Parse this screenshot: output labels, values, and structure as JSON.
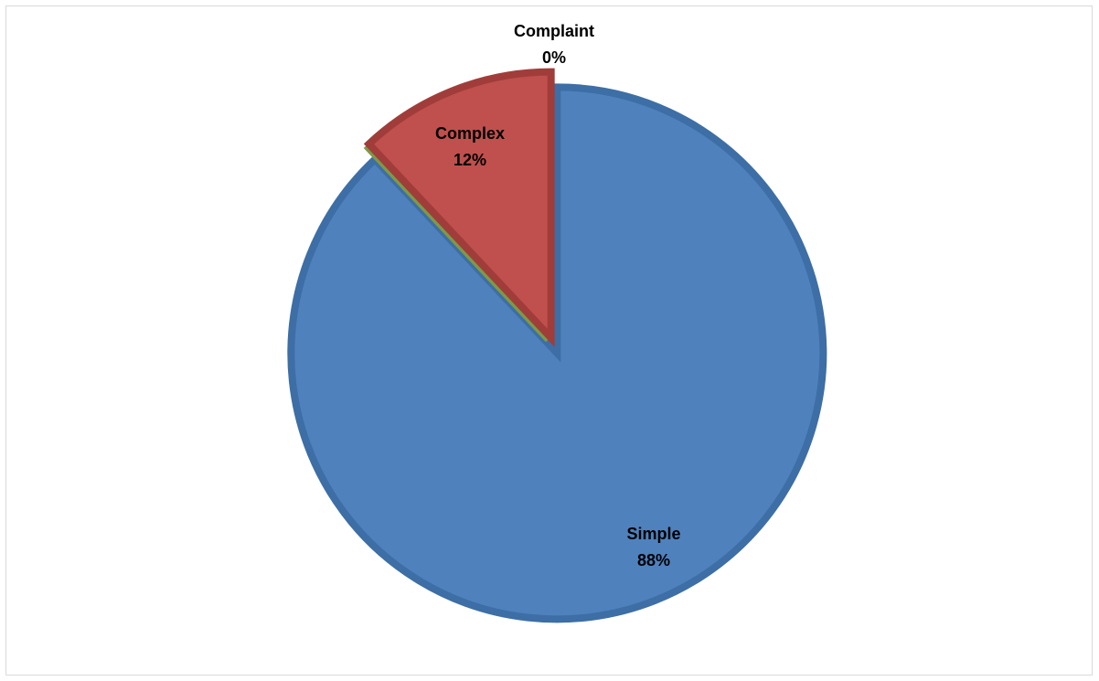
{
  "chart_data": {
    "type": "pie",
    "title": "",
    "slices": [
      {
        "name": "Simple",
        "value": 88,
        "label": "88%",
        "color": "#4f81bd",
        "edge": "#3d6ea5"
      },
      {
        "name": "Complaint",
        "value": 0,
        "label": "0%",
        "color": "#9bbb59",
        "edge": "#7d9a45"
      },
      {
        "name": "Complex",
        "value": 12,
        "label": "12%",
        "color": "#c0504d",
        "edge": "#a03d3a"
      }
    ],
    "start_angle_deg": 0,
    "direction": "clockwise",
    "exploded": true,
    "legend": "none",
    "data_labels": "category and percentage"
  }
}
